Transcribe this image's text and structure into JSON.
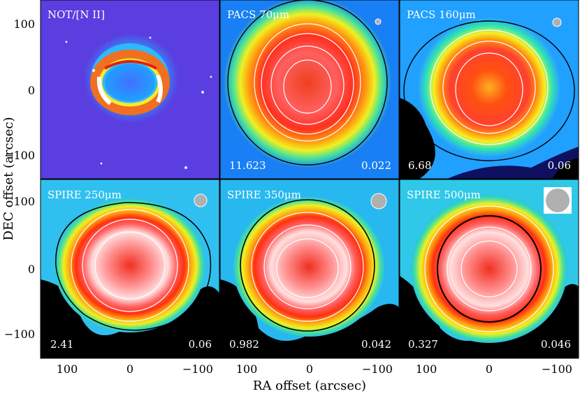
{
  "figure": {
    "ylabel": "DEC offset (arcsec)",
    "xlabel": "RA offset (arcsec)",
    "x_ticks": [
      "100",
      "0",
      "−100"
    ],
    "y_ticks_top": [
      "100",
      "0",
      "−100"
    ],
    "y_ticks_bottom": [
      "100",
      "0",
      "−100"
    ]
  },
  "panels": [
    {
      "id": "not-nii",
      "label": "NOT/[N II]",
      "min": "",
      "max": "",
      "beam": "none",
      "style": "optical"
    },
    {
      "id": "pacs70",
      "label": "PACS 70μm",
      "min": "11.623",
      "max": "0.022",
      "beam": "small",
      "style": "pacs70"
    },
    {
      "id": "pacs160",
      "label": "PACS 160μm",
      "min": "6.68",
      "max": "0.06",
      "beam": "small",
      "style": "pacs160"
    },
    {
      "id": "spire250",
      "label": "SPIRE 250μm",
      "min": "2.41",
      "max": "0.06",
      "beam": "medium",
      "style": "spire"
    },
    {
      "id": "spire350",
      "label": "SPIRE 350μm",
      "min": "0.982",
      "max": "0.042",
      "beam": "medium",
      "style": "spire"
    },
    {
      "id": "spire500",
      "label": "SPIRE 500μm",
      "min": "0.327",
      "max": "0.046",
      "beam": "large",
      "style": "spire"
    }
  ],
  "colors": {
    "optical_bg": "#5a3ee0",
    "hot": "#e83010",
    "warm": "#ffd000",
    "cool": "#30e8b0",
    "cold": "#2090ff",
    "beam": "#b0b0b0"
  }
}
